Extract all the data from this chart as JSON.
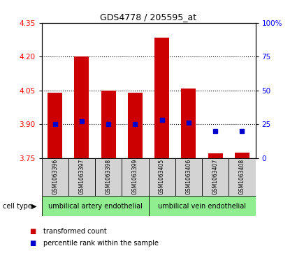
{
  "title": "GDS4778 / 205595_at",
  "samples": [
    "GSM1063396",
    "GSM1063397",
    "GSM1063398",
    "GSM1063399",
    "GSM1063405",
    "GSM1063406",
    "GSM1063407",
    "GSM1063408"
  ],
  "red_values": [
    4.04,
    4.2,
    4.05,
    4.04,
    4.285,
    4.06,
    3.77,
    3.775
  ],
  "blue_values_pct": [
    25,
    27,
    25,
    25,
    28,
    26,
    20,
    20
  ],
  "ylim": [
    3.75,
    4.35
  ],
  "y2lim": [
    0,
    100
  ],
  "yticks": [
    3.75,
    3.9,
    4.05,
    4.2,
    4.35
  ],
  "y2ticks": [
    0,
    25,
    50,
    75,
    100
  ],
  "y2ticklabels": [
    "0",
    "25",
    "50",
    "75",
    "100%"
  ],
  "dotted_lines": [
    3.9,
    4.05,
    4.2
  ],
  "group1_label": "umbilical artery endothelial",
  "group2_label": "umbilical vein endothelial",
  "group1_indices": [
    0,
    1,
    2,
    3
  ],
  "group2_indices": [
    4,
    5,
    6,
    7
  ],
  "cell_type_label": "cell type",
  "legend_red": "transformed count",
  "legend_blue": "percentile rank within the sample",
  "bar_color": "#cc0000",
  "dot_color": "#0000cc",
  "group_bg": "#90ee90",
  "sample_bg": "#d3d3d3",
  "bar_bottom": 3.75,
  "bar_width": 0.55
}
